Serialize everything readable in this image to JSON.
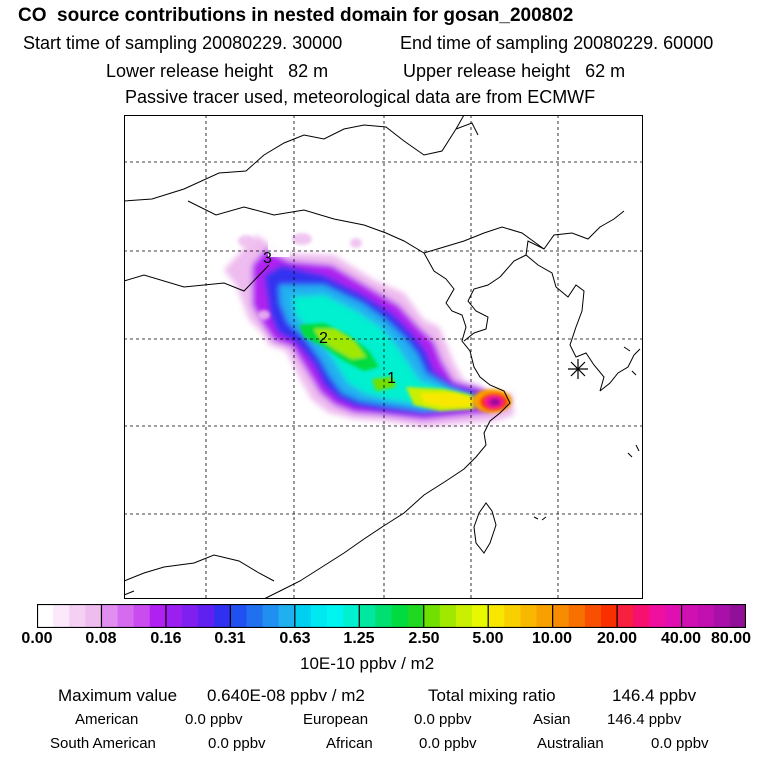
{
  "header": {
    "title": "CO  source contributions in nested domain for gosan_200802",
    "start_time": "Start time of sampling 20080229. 30000",
    "end_time": "End time of sampling 20080229. 60000",
    "lower_release": "Lower release height   82 m",
    "upper_release": "Upper release height   62 m",
    "note": "Passive tracer used, meteorological data are from ECMWF"
  },
  "map": {
    "labels": [
      "3",
      "2",
      "1"
    ],
    "receptor_marker": "receptor-star"
  },
  "colorbar": {
    "tick_labels": [
      "0.00",
      "0.08",
      "0.16",
      "0.31",
      "0.63",
      "1.25",
      "2.50",
      "5.00",
      "10.00",
      "20.00",
      "40.00",
      "80.00"
    ],
    "units": "10E-10 ppbv / m2",
    "colors": [
      "#ffffff",
      "#fbe8fb",
      "#f5d0f5",
      "#eebcef",
      "#e08ef0",
      "#d56cf0",
      "#c94cf0",
      "#b020f0",
      "#9b20f0",
      "#7f20f0",
      "#6020f0",
      "#3030f0",
      "#2050f0",
      "#2070f0",
      "#2090f0",
      "#20b0f0",
      "#00d0f0",
      "#00e8f0",
      "#00f5f0",
      "#00f0d0",
      "#00e8a0",
      "#00e070",
      "#00dc40",
      "#20d820",
      "#70e000",
      "#a0e800",
      "#c8f000",
      "#e8f800",
      "#f8e800",
      "#f8d000",
      "#f8b800",
      "#f8a000",
      "#f88c00",
      "#f87000",
      "#f85000",
      "#f83000",
      "#f82040",
      "#f81070",
      "#f010a0",
      "#e010b0",
      "#d010b0",
      "#c010b0",
      "#a810a8",
      "#901098"
    ]
  },
  "summary": {
    "max_label": "Maximum value",
    "max_value": "0.640E-08 ppbv / m2",
    "total_label": "Total mixing ratio",
    "total_value": "146.4 ppbv",
    "regions": [
      {
        "name": "American",
        "value": "0.0 ppbv"
      },
      {
        "name": "European",
        "value": "0.0 ppbv"
      },
      {
        "name": "Asian",
        "value": "146.4 ppbv"
      },
      {
        "name": "South American",
        "value": "0.0 ppbv"
      },
      {
        "name": "African",
        "value": "0.0 ppbv"
      },
      {
        "name": "Australian",
        "value": "0.0 ppbv"
      }
    ]
  }
}
